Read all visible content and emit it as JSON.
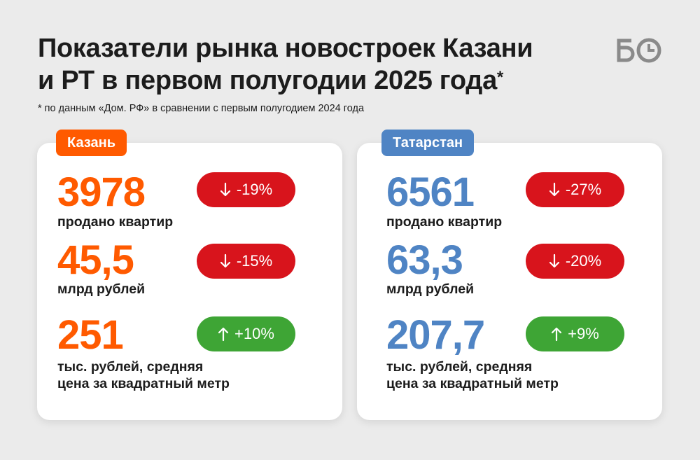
{
  "header": {
    "title_line1": "Показатели рынка новостроек Казани",
    "title_line2": "и РТ в первом полугодии 2025 года",
    "title_mark": "*",
    "note": "* по данным «Дом. РФ» в сравнении с первым полугодием 2024 года",
    "logo": "БО-logo-icon"
  },
  "colors": {
    "kazan_accent": "#ff5a00",
    "tatarstan_accent": "#4f84c4",
    "decrease": "#d8141c",
    "increase": "#3ea535"
  },
  "kazan": {
    "tag": "Казань",
    "metrics": [
      {
        "value": "3978",
        "label": "продано квартир",
        "change": "-19%",
        "direction": "down",
        "icon": "arrow-down-icon"
      },
      {
        "value": "45,5",
        "label": "млрд рублей",
        "change": "-15%",
        "direction": "down",
        "icon": "arrow-down-icon"
      },
      {
        "value": "251",
        "label_line1": "тыс. рублей, средняя",
        "label_line2": "цена за квадратный метр",
        "change": "+10%",
        "direction": "up",
        "icon": "arrow-up-icon"
      }
    ]
  },
  "tatarstan": {
    "tag": "Татарстан",
    "metrics": [
      {
        "value": "6561",
        "label": "продано квартир",
        "change": "-27%",
        "direction": "down",
        "icon": "arrow-down-icon"
      },
      {
        "value": "63,3",
        "label": "млрд рублей",
        "change": "-20%",
        "direction": "down",
        "icon": "arrow-down-icon"
      },
      {
        "value": "207,7",
        "label_line1": "тыс. рублей, средняя",
        "label_line2": "цена за квадратный метр",
        "change": "+9%",
        "direction": "up",
        "icon": "arrow-up-icon"
      }
    ]
  }
}
